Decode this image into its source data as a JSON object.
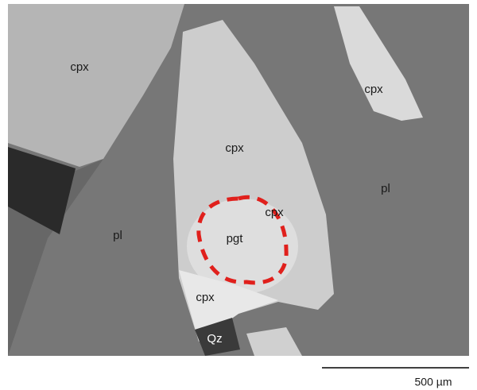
{
  "labels": [
    "cpx",
    "cpx",
    "cpx",
    "pl",
    "cpx",
    "pl",
    "pgt",
    "cpx",
    "Qz"
  ],
  "scale_bar": {
    "label": "500 µm"
  }
}
